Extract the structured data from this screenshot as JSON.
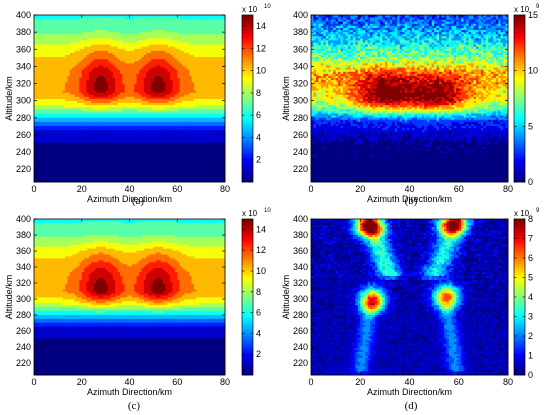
{
  "colors": {
    "colormap": "jet",
    "axis": "#000000",
    "background": "#ffffff"
  },
  "chart_data": [
    {
      "type": "heatmap",
      "panel": "a",
      "caption": "(a)",
      "xlabel": "Azimuth Direction/km",
      "ylabel": "Altitude/km",
      "xlim": [
        0,
        80
      ],
      "ylim": [
        205,
        400
      ],
      "xticks": [
        "0",
        "20",
        "40",
        "60",
        "80"
      ],
      "yticks": [
        "220",
        "240",
        "260",
        "280",
        "300",
        "320",
        "340",
        "360",
        "380",
        "400"
      ],
      "colorbar": {
        "multiplier": "x 10",
        "exponent": "10",
        "range": [
          0,
          15
        ],
        "ticks": [
          "2",
          "4",
          "6",
          "8",
          "10",
          "12",
          "14"
        ]
      },
      "field": {
        "background": [
          [
            205,
            0.5
          ],
          [
            250,
            1.0
          ],
          [
            265,
            2.0
          ],
          [
            280,
            5.0
          ],
          [
            295,
            8.8
          ],
          [
            310,
            10.6
          ],
          [
            335,
            10.4
          ],
          [
            360,
            9.2
          ],
          [
            380,
            7.2
          ],
          [
            400,
            6.2
          ]
        ],
        "peaks": [
          {
            "x": 28,
            "y": 315,
            "amp": 3.8,
            "sx": 6,
            "sy_below": 13,
            "sy_above": 32
          },
          {
            "x": 52,
            "y": 315,
            "amp": 3.8,
            "sx": 6,
            "sy_below": 13,
            "sy_above": 32
          }
        ],
        "noise": 0
      },
      "levels": 14
    },
    {
      "type": "heatmap",
      "panel": "b",
      "caption": "(b)",
      "xlabel": "Azimuth Direction/km",
      "ylabel": "Altitude/km",
      "xlim": [
        0,
        80
      ],
      "ylim": [
        205,
        400
      ],
      "xticks": [
        "0",
        "20",
        "40",
        "60",
        "80"
      ],
      "yticks": [
        "220",
        "240",
        "260",
        "280",
        "300",
        "320",
        "340",
        "360",
        "380",
        "400"
      ],
      "colorbar": {
        "multiplier": "x 10",
        "exponent": "9",
        "range": [
          0,
          15
        ],
        "ticks": [
          "0",
          "5",
          "10",
          "15"
        ]
      },
      "field": {
        "background": [
          [
            205,
            0.3
          ],
          [
            250,
            0.8
          ],
          [
            275,
            2.5
          ],
          [
            292,
            7.0
          ],
          [
            305,
            9.0
          ],
          [
            330,
            10.5
          ],
          [
            350,
            7.5
          ],
          [
            370,
            5.5
          ],
          [
            390,
            3.8
          ],
          [
            400,
            3.0
          ]
        ],
        "peaks": [
          {
            "x": 30,
            "y": 305,
            "amp": 6.0,
            "sx": 9,
            "sy_below": 12,
            "sy_above": 18
          },
          {
            "x": 52,
            "y": 303,
            "amp": 5.5,
            "sx": 9,
            "sy_below": 12,
            "sy_above": 18
          }
        ],
        "noise": 1.6
      },
      "levels": 12
    },
    {
      "type": "heatmap",
      "panel": "c",
      "caption": "(c)",
      "xlabel": "Azimuth Direction/km",
      "ylabel": "Altitude/km",
      "xlim": [
        0,
        80
      ],
      "ylim": [
        205,
        400
      ],
      "xticks": [
        "0",
        "20",
        "40",
        "60",
        "80"
      ],
      "yticks": [
        "220",
        "240",
        "260",
        "280",
        "300",
        "320",
        "340",
        "360",
        "380",
        "400"
      ],
      "colorbar": {
        "multiplier": "x 10",
        "exponent": "10",
        "range": [
          0,
          15
        ],
        "ticks": [
          "2",
          "4",
          "6",
          "8",
          "10",
          "12",
          "14"
        ]
      },
      "field": {
        "background": [
          [
            205,
            0.5
          ],
          [
            250,
            1.0
          ],
          [
            265,
            2.0
          ],
          [
            280,
            5.0
          ],
          [
            295,
            8.8
          ],
          [
            310,
            10.6
          ],
          [
            335,
            10.4
          ],
          [
            360,
            9.2
          ],
          [
            380,
            7.2
          ],
          [
            400,
            6.2
          ]
        ],
        "peaks": [
          {
            "x": 28,
            "y": 312,
            "amp": 3.8,
            "sx": 6,
            "sy_below": 13,
            "sy_above": 32
          },
          {
            "x": 52,
            "y": 312,
            "amp": 3.8,
            "sx": 6,
            "sy_below": 13,
            "sy_above": 32
          }
        ],
        "noise": 0
      },
      "levels": 14
    },
    {
      "type": "heatmap",
      "panel": "d",
      "caption": "(d)",
      "xlabel": "Azimuth Direction/km",
      "ylabel": "Altitude/km",
      "xlim": [
        0,
        80
      ],
      "ylim": [
        205,
        400
      ],
      "xticks": [
        "0",
        "20",
        "40",
        "60",
        "80"
      ],
      "yticks": [
        "220",
        "240",
        "260",
        "280",
        "300",
        "320",
        "340",
        "360",
        "380",
        "400"
      ],
      "colorbar": {
        "multiplier": "x 10",
        "exponent": "9",
        "range": [
          0,
          8
        ],
        "ticks": [
          "0",
          "1",
          "2",
          "3",
          "4",
          "5",
          "6",
          "7",
          "8"
        ]
      },
      "field": {
        "background": [
          [
            205,
            0.6
          ],
          [
            400,
            0.6
          ]
        ],
        "peaks": [
          {
            "x": 25,
            "y": 298,
            "amp": 6.5,
            "sx": 3.5,
            "sy_below": 9,
            "sy_above": 11
          },
          {
            "x": 55,
            "y": 302,
            "amp": 6.0,
            "sx": 3.5,
            "sy_below": 9,
            "sy_above": 11
          },
          {
            "x": 24,
            "y": 390,
            "amp": 6.2,
            "sx": 4,
            "sy_below": 8,
            "sy_above": 10
          },
          {
            "x": 57,
            "y": 392,
            "amp": 5.8,
            "sx": 4,
            "sy_below": 8,
            "sy_above": 10
          }
        ],
        "ridges": [
          {
            "x0": 23,
            "y0": 400,
            "x1": 32,
            "y1": 330,
            "amp": 2.8,
            "w": 3.5
          },
          {
            "x0": 60,
            "y0": 400,
            "x1": 50,
            "y1": 330,
            "amp": 2.6,
            "w": 3.5
          },
          {
            "x0": 24,
            "y0": 290,
            "x1": 20,
            "y1": 210,
            "amp": 1.6,
            "w": 2.5
          },
          {
            "x0": 55,
            "y0": 290,
            "x1": 59,
            "y1": 210,
            "amp": 1.6,
            "w": 2.5
          }
        ],
        "noise": 0.5
      },
      "levels": 16
    }
  ]
}
